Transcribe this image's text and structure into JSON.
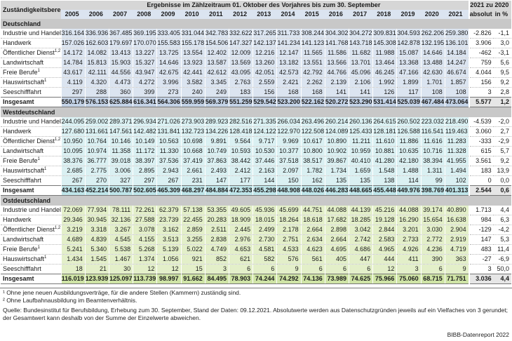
{
  "header": {
    "area_label": "Zuständigkeitsbereich",
    "group_title": "Ergebnisse im Zählzeitraum 01. Oktober des Vorjahres bis zum 30. September",
    "change_title": "2021 zu 2020",
    "years": [
      "2005",
      "2006",
      "2007",
      "2008",
      "2009",
      "2010",
      "2011",
      "2012",
      "2013",
      "2014",
      "2015",
      "2016",
      "2017",
      "2018",
      "2019",
      "2020",
      "2021"
    ],
    "abs_label": "absolut",
    "pct_label": "in %"
  },
  "sections": [
    {
      "title": "Deutschland",
      "rows": [
        {
          "label": "Industrie und Handel",
          "sup": "",
          "values": [
            "316.164",
            "336.936",
            "367.485",
            "369.195",
            "333.405",
            "331.044",
            "342.783",
            "332.622",
            "317.265",
            "311.733",
            "308.244",
            "304.302",
            "304.272",
            "309.831",
            "304.593",
            "262.206",
            "259.380"
          ],
          "abs": "-2.826",
          "pct": "-1,1"
        },
        {
          "label": "Handwerk",
          "sup": "",
          "values": [
            "157.026",
            "162.603",
            "179.697",
            "170.070",
            "155.583",
            "155.178",
            "154.506",
            "147.327",
            "142.137",
            "141.234",
            "141.123",
            "141.768",
            "143.718",
            "145.308",
            "142.878",
            "132.195",
            "136.101"
          ],
          "abs": "3.906",
          "pct": "3,0"
        },
        {
          "label": "Öffentlicher Dienst",
          "sup": "1,2",
          "values": [
            "14.172",
            "14.082",
            "13.413",
            "13.227",
            "13.725",
            "13.554",
            "12.402",
            "12.009",
            "12.216",
            "12.147",
            "11.565",
            "11.586",
            "11.682",
            "11.988",
            "15.087",
            "14.646",
            "14.184"
          ],
          "abs": "-462",
          "pct": "-3,1"
        },
        {
          "label": "Landwirtschaft",
          "sup": "",
          "values": [
            "14.784",
            "15.813",
            "15.903",
            "15.327",
            "14.646",
            "13.923",
            "13.587",
            "13.569",
            "13.260",
            "13.182",
            "13.551",
            "13.566",
            "13.701",
            "13.464",
            "13.368",
            "13.488",
            "14.247"
          ],
          "abs": "759",
          "pct": "5,6"
        },
        {
          "label": "Freie Berufe",
          "sup": "1",
          "values": [
            "43.617",
            "42.111",
            "44.556",
            "43.947",
            "42.675",
            "42.441",
            "42.612",
            "43.095",
            "42.051",
            "42.573",
            "42.792",
            "44.766",
            "45.096",
            "46.245",
            "47.166",
            "42.630",
            "46.674"
          ],
          "abs": "4.044",
          "pct": "9,5"
        },
        {
          "label": "Hauswirtschaft",
          "sup": "1",
          "values": [
            "4.119",
            "4.320",
            "4.473",
            "4.272",
            "3.996",
            "3.582",
            "3.345",
            "2.763",
            "2.559",
            "2.421",
            "2.262",
            "2.139",
            "2.106",
            "1.992",
            "1.899",
            "1.701",
            "1.857"
          ],
          "abs": "156",
          "pct": "9,2"
        },
        {
          "label": "Seeschifffahrt",
          "sup": "",
          "values": [
            "297",
            "288",
            "360",
            "399",
            "273",
            "240",
            "249",
            "183",
            "156",
            "168",
            "168",
            "141",
            "141",
            "126",
            "117",
            "108",
            "108"
          ],
          "abs": "3",
          "pct": "2,8"
        }
      ],
      "total": {
        "label": "Insgesamt",
        "values": [
          "550.179",
          "576.153",
          "625.884",
          "616.341",
          "564.306",
          "559.959",
          "569.379",
          "551.259",
          "529.542",
          "523.200",
          "522.162",
          "520.272",
          "523.290",
          "531.414",
          "525.039",
          "467.484",
          "473.064"
        ],
        "abs": "5.577",
        "pct": "1,2"
      }
    },
    {
      "title": "Westdeutschland",
      "rows": [
        {
          "label": "Industrie und Handel",
          "sup": "",
          "values": [
            "244.095",
            "259.002",
            "289.371",
            "296.934",
            "271.026",
            "273.903",
            "289.923",
            "282.516",
            "271.335",
            "266.034",
            "263.496",
            "260.214",
            "260.136",
            "264.615",
            "260.502",
            "223.032",
            "218.490"
          ],
          "abs": "-4.539",
          "pct": "-2,0"
        },
        {
          "label": "Handwerk",
          "sup": "",
          "values": [
            "127.680",
            "131.661",
            "147.561",
            "142.482",
            "131.841",
            "132.723",
            "134.226",
            "128.418",
            "124.122",
            "122.970",
            "122.508",
            "124.089",
            "125.433",
            "128.181",
            "126.588",
            "116.541",
            "119.463"
          ],
          "abs": "3.060",
          "pct": "2,7"
        },
        {
          "label": "Öffentlicher Dienst",
          "sup": "1,2",
          "values": [
            "10.950",
            "10.764",
            "10.146",
            "10.149",
            "10.563",
            "10.698",
            "9.891",
            "9.564",
            "9.717",
            "9.969",
            "10.617",
            "10.890",
            "11.211",
            "11.610",
            "11.886",
            "11.616",
            "11.283"
          ],
          "abs": "-333",
          "pct": "-2,9"
        },
        {
          "label": "Landwirtschaft",
          "sup": "",
          "values": [
            "10.095",
            "10.974",
            "11.358",
            "11.172",
            "11.330",
            "10.668",
            "10.749",
            "10.593",
            "10.530",
            "10.377",
            "10.800",
            "10.902",
            "10.959",
            "10.881",
            "10.635",
            "10.716",
            "11.328"
          ],
          "abs": "615",
          "pct": "5,7"
        },
        {
          "label": "Freie Berufe",
          "sup": "1",
          "values": [
            "38.376",
            "36.777",
            "39.018",
            "38.397",
            "37.536",
            "37.419",
            "37.863",
            "38.442",
            "37.446",
            "37.518",
            "38.517",
            "39.867",
            "40.410",
            "41.280",
            "42.180",
            "38.394",
            "41.955"
          ],
          "abs": "3.561",
          "pct": "9,2"
        },
        {
          "label": "Hauswirtschaft",
          "sup": "1",
          "values": [
            "2.685",
            "2.775",
            "3.006",
            "2.895",
            "2.943",
            "2.661",
            "2.493",
            "2.412",
            "2.163",
            "2.097",
            "1.782",
            "1.734",
            "1.659",
            "1.548",
            "1.488",
            "1.311",
            "1.494"
          ],
          "abs": "183",
          "pct": "13,9"
        },
        {
          "label": "Seeschifffahrt",
          "sup": "",
          "values": [
            "267",
            "270",
            "327",
            "297",
            "267",
            "231",
            "147",
            "177",
            "144",
            "150",
            "162",
            "135",
            "135",
            "138",
            "114",
            "99",
            "102"
          ],
          "abs": "0",
          "pct": "0,0"
        }
      ],
      "total": {
        "label": "Insgesamt",
        "values": [
          "434.163",
          "452.214",
          "500.787",
          "502.605",
          "465.309",
          "468.297",
          "484.884",
          "472.353",
          "455.298",
          "448.908",
          "448.026",
          "446.283",
          "448.665",
          "455.448",
          "449.976",
          "398.769",
          "401.313"
        ],
        "abs": "2.544",
        "pct": "0,6"
      }
    },
    {
      "title": "Ostdeutschland",
      "rows": [
        {
          "label": "Industrie und Handel",
          "sup": "",
          "values": [
            "72.069",
            "77.934",
            "78.111",
            "72.261",
            "62.379",
            "57.138",
            "53.355",
            "49.605",
            "45.936",
            "45.699",
            "44.751",
            "44.088",
            "44.139",
            "45.216",
            "44.088",
            "39.174",
            "40.890"
          ],
          "abs": "1.713",
          "pct": "4,4"
        },
        {
          "label": "Handwerk",
          "sup": "",
          "values": [
            "29.346",
            "30.945",
            "32.136",
            "27.588",
            "23.739",
            "22.455",
            "20.283",
            "18.909",
            "18.015",
            "18.264",
            "18.618",
            "17.682",
            "18.285",
            "19.128",
            "16.290",
            "15.654",
            "16.638"
          ],
          "abs": "984",
          "pct": "6,3"
        },
        {
          "label": "Öffentlicher Dienst",
          "sup": "1,2",
          "values": [
            "3.219",
            "3.318",
            "3.267",
            "3.078",
            "3.162",
            "2.859",
            "2.511",
            "2.445",
            "2.499",
            "2.178",
            "2.664",
            "2.898",
            "3.042",
            "2.844",
            "3.201",
            "3.030",
            "2.904"
          ],
          "abs": "-129",
          "pct": "-4,2"
        },
        {
          "label": "Landwirtschaft",
          "sup": "",
          "values": [
            "4.689",
            "4.839",
            "4.545",
            "4.155",
            "3.513",
            "3.255",
            "2.838",
            "2.976",
            "2.730",
            "2.751",
            "2.634",
            "2.664",
            "2.742",
            "2.583",
            "2.733",
            "2.772",
            "2.919"
          ],
          "abs": "147",
          "pct": "5,3"
        },
        {
          "label": "Freie Berufe",
          "sup": "1",
          "values": [
            "5.241",
            "5.340",
            "5.538",
            "5.268",
            "5.139",
            "5.022",
            "4.749",
            "4.653",
            "4.581",
            "4.533",
            "4.623",
            "4.695",
            "4.686",
            "4.965",
            "4.926",
            "4.236",
            "4.719"
          ],
          "abs": "483",
          "pct": "11,4"
        },
        {
          "label": "Hauswirtschaft",
          "sup": "1",
          "values": [
            "1.434",
            "1.545",
            "1.467",
            "1.374",
            "1.056",
            "921",
            "852",
            "621",
            "582",
            "576",
            "561",
            "405",
            "447",
            "444",
            "411",
            "390",
            "363"
          ],
          "abs": "-27",
          "pct": "-6,9"
        },
        {
          "label": "Seeschifffahrt",
          "sup": "",
          "values": [
            "18",
            "21",
            "30",
            "12",
            "12",
            "15",
            "3",
            "6",
            "6",
            "9",
            "6",
            "6",
            "6",
            "12",
            "3",
            "6",
            "9"
          ],
          "abs": "3",
          "pct": "50,0"
        }
      ],
      "total": {
        "label": "Insgesamt",
        "values": [
          "116.019",
          "123.939",
          "125.097",
          "113.739",
          "98.997",
          "91.662",
          "84.495",
          "78.903",
          "74.244",
          "74.292",
          "74.136",
          "73.989",
          "74.625",
          "75.966",
          "75.060",
          "68.715",
          "71.751"
        ],
        "abs": "3.036",
        "pct": "4,4"
      }
    }
  ],
  "notes": [
    "¹ Ohne jene neuen Ausbildungsverträge, für die andere Stellen (Kammern) zuständig sind.",
    "² Ohne Laufbahnausbildung im Beamtenverhältnis."
  ],
  "source_line1": "Quelle: Bundesinstitut für Berufsbildung, Erhebung zum 30. September, Stand der Daten: 09.12.2021. Absolutwerte werden aus Datenschutzgründen jeweils auf ein Vielfaches von 3 gerundet;",
  "source_line2": "der Gesamtwert kann deshalb von der Summe der Einzelwerte abweichen.",
  "brand": "BIBB-Datenreport 2022"
}
